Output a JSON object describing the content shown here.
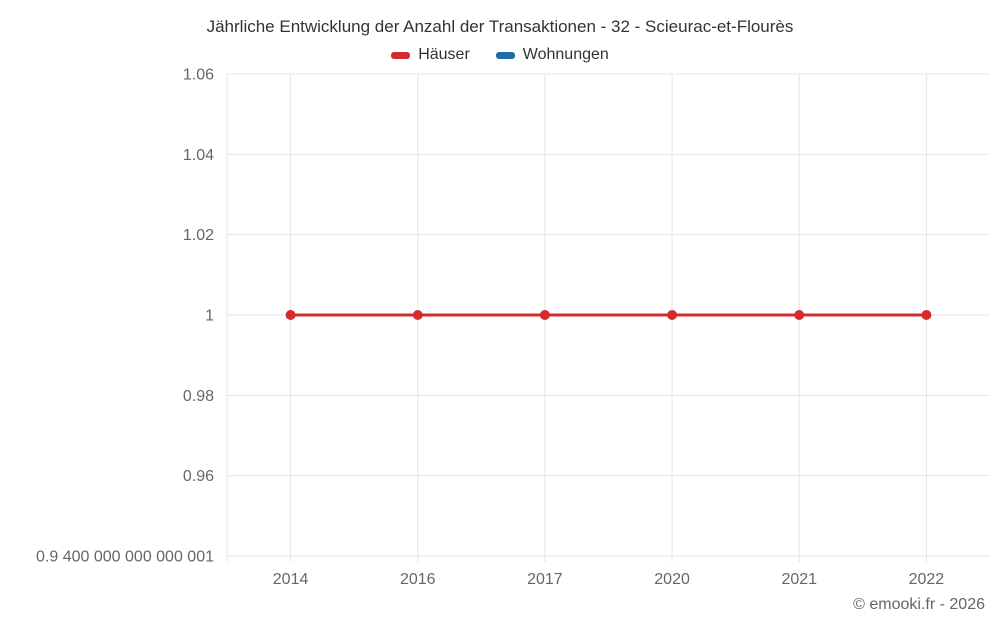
{
  "header": {
    "title": "Jährliche Entwicklung der Anzahl der Transaktionen - 32 - Scieurac-et-Flourès"
  },
  "legend": {
    "items": [
      {
        "label": "Häuser",
        "color": "#d32b2e"
      },
      {
        "label": "Wohnungen",
        "color": "#1c6ea4"
      }
    ]
  },
  "footer": {
    "credit": "© emooki.fr - 2026"
  },
  "style": {
    "grid_color": "#e6e6e6",
    "axis_label_color": "#666666",
    "title_color": "#333333"
  },
  "chart_data": {
    "type": "line",
    "title": "Jährliche Entwicklung der Anzahl der Transaktionen - 32 - Scieurac-et-Flourès",
    "xlabel": "",
    "ylabel": "",
    "categories": [
      "2014",
      "2016",
      "2017",
      "2020",
      "2021",
      "2022"
    ],
    "series": [
      {
        "name": "Häuser",
        "color": "#d32b2e",
        "values": [
          1,
          1,
          1,
          1,
          1,
          1
        ]
      },
      {
        "name": "Wohnungen",
        "color": "#1c6ea4",
        "values": []
      }
    ],
    "ylim": [
      0.9400000000000001,
      1.06
    ],
    "y_ticks": [
      {
        "value": 0.9400000000000001,
        "label": "0.9 400 000 000 000 001"
      },
      {
        "value": 0.96,
        "label": "0.96"
      },
      {
        "value": 0.98,
        "label": "0.98"
      },
      {
        "value": 1,
        "label": "1"
      },
      {
        "value": 1.02,
        "label": "1.02"
      },
      {
        "value": 1.04,
        "label": "1.04"
      },
      {
        "value": 1.06,
        "label": "1.06"
      }
    ],
    "grid": true,
    "legend_position": "top",
    "marker_radius": 5,
    "line_width": 3
  }
}
